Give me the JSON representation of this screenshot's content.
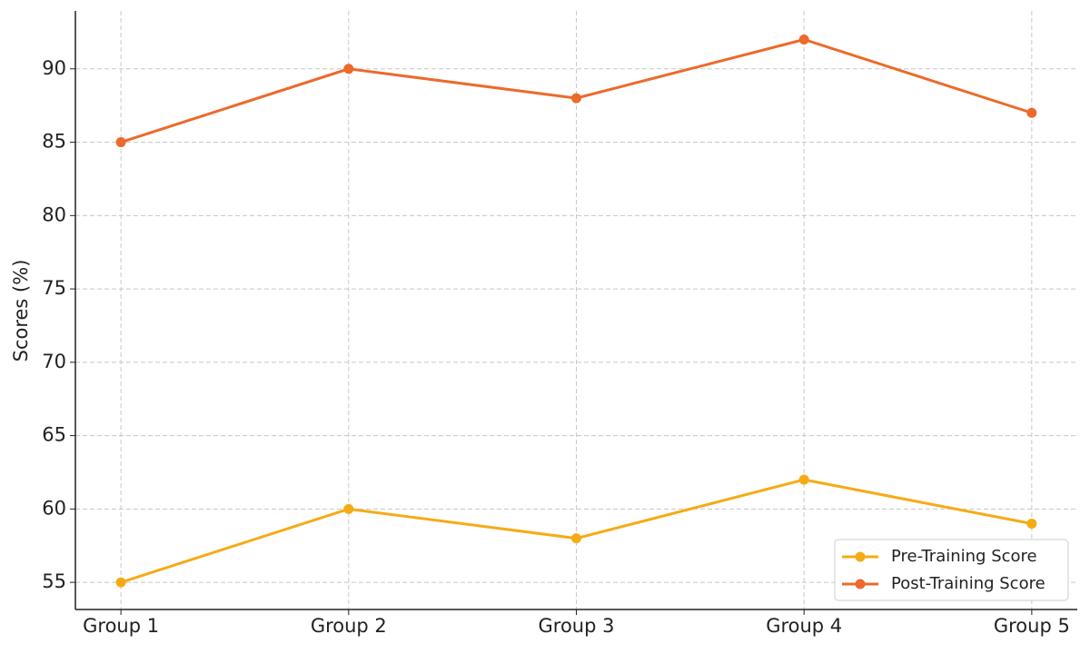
{
  "chart_data": {
    "type": "line",
    "y_label": "Scores (%)",
    "categories": [
      "Group 1",
      "Group 2",
      "Group 3",
      "Group 4",
      "Group 5"
    ],
    "series": [
      {
        "name": "Pre-Training Score",
        "color": "#f5ab16",
        "values": [
          55,
          60,
          58,
          62,
          59
        ]
      },
      {
        "name": "Post-Training Score",
        "color": "#ec6a2b",
        "values": [
          85,
          90,
          88,
          92,
          87
        ]
      }
    ],
    "ylim": [
      53.15,
      93.95
    ],
    "yticks": [
      55,
      60,
      65,
      70,
      75,
      80,
      85,
      90
    ],
    "grid": true,
    "legend": "lower right"
  }
}
